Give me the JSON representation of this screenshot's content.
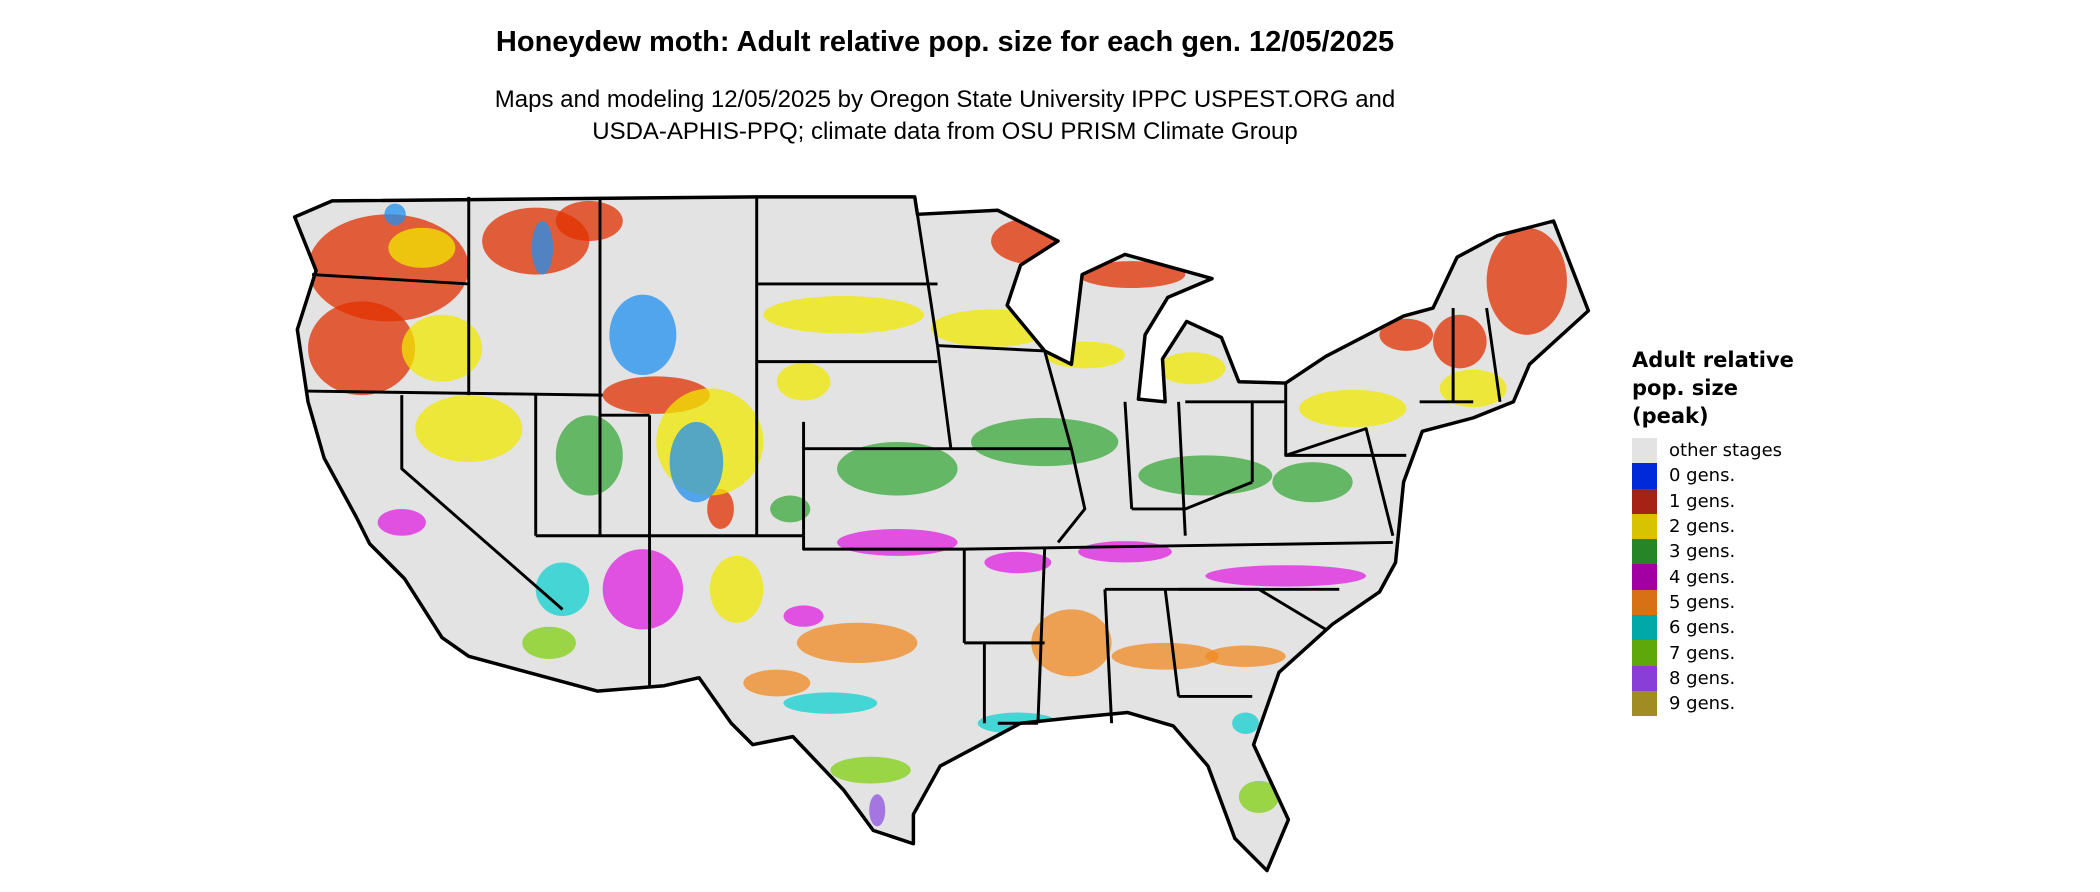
{
  "title": "Honeydew moth: Adult relative pop. size for each gen. 12/05/2025",
  "subtitle_line1": "Maps and modeling 12/05/2025 by Oregon State University IPPC USPEST.ORG and",
  "subtitle_line2": "USDA-APHIS-PPQ; climate data from OSU PRISM Climate Group",
  "legend": {
    "title": [
      "Adult relative",
      "pop. size",
      "(peak)"
    ],
    "items": [
      {
        "label": "other stages",
        "color": "#e3e3e3"
      },
      {
        "label": "0 gens.",
        "color": "#0029d9"
      },
      {
        "label": "1 gens.",
        "color": "#a52215"
      },
      {
        "label": "2 gens.",
        "color": "#d8c300"
      },
      {
        "label": "3 gens.",
        "color": "#268526"
      },
      {
        "label": "4 gens.",
        "color": "#a300a3"
      },
      {
        "label": "5 gens.",
        "color": "#d87015"
      },
      {
        "label": "6 gens.",
        "color": "#00a8a8"
      },
      {
        "label": "7 gens.",
        "color": "#5ea80c"
      },
      {
        "label": "8 gens.",
        "color": "#8a3ed8"
      },
      {
        "label": "9 gens.",
        "color": "#a08c22"
      }
    ]
  },
  "map_colors": {
    "base": "#e3e3e3",
    "border": "#000000",
    "red": "#e03000",
    "yellow": "#f0e800",
    "green": "#3aa83a",
    "magenta": "#e020e0",
    "orange": "#f08a20",
    "cyan": "#10d0d0",
    "lime": "#80d010",
    "purple": "#9050e0",
    "blue": "#2090f0"
  }
}
